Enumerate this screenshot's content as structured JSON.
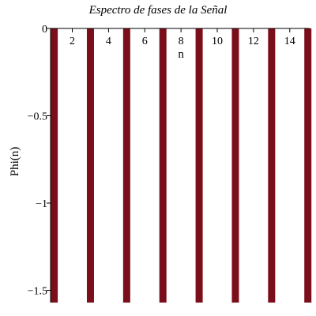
{
  "chart_data": {
    "type": "bar",
    "title": "Espectro de fases de la Señal",
    "xlabel": "n",
    "ylabel": "Phi(n)",
    "x": [
      1,
      3,
      5,
      7,
      9,
      11,
      13,
      15
    ],
    "values": [
      -1.5708,
      -1.5708,
      -1.5708,
      -1.5708,
      -1.5708,
      -1.5708,
      -1.5708,
      -1.5708
    ],
    "xlim": [
      0.8,
      15.1
    ],
    "ylim": [
      -1.57,
      0
    ],
    "xticks": [
      2,
      4,
      6,
      8,
      10,
      12,
      14
    ],
    "xtick_labels": [
      "2",
      "4",
      "6",
      "8",
      "10",
      "12",
      "14"
    ],
    "yticks": [
      0,
      -0.5,
      -1,
      -1.5
    ],
    "ytick_labels": [
      "0",
      "−0.5",
      "−1",
      "−1.5"
    ],
    "bar_color": "#7a0e1a",
    "grid": false
  }
}
